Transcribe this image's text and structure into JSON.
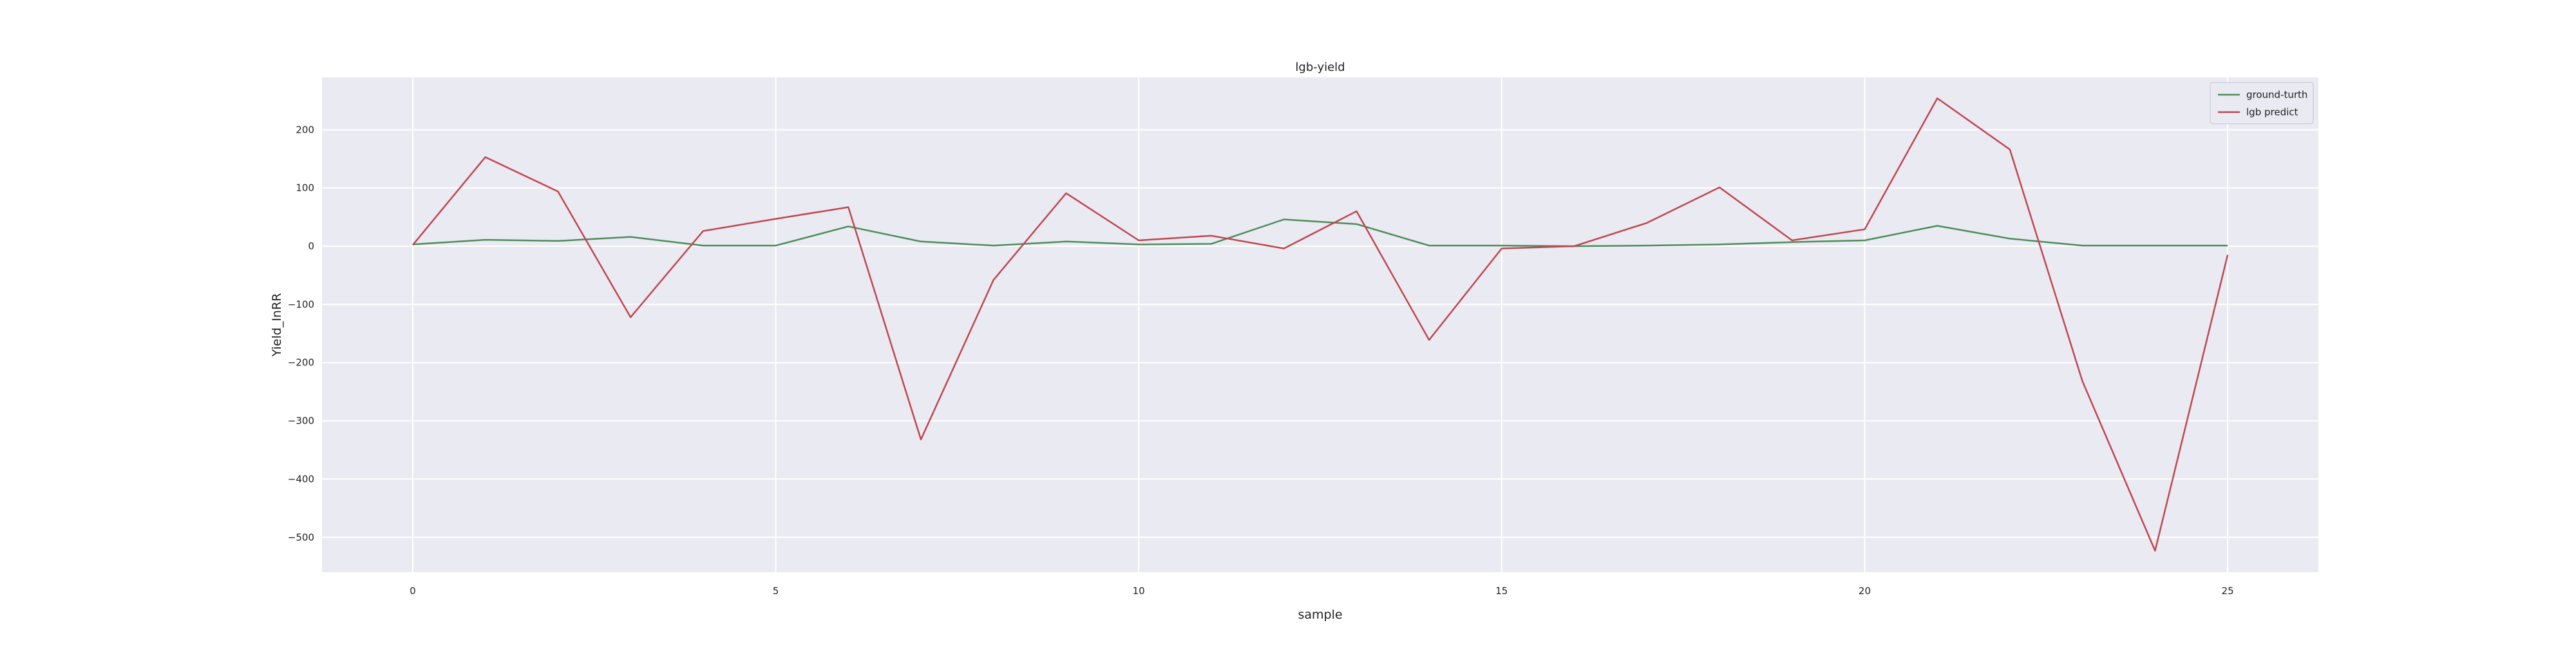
{
  "chart_data": {
    "type": "line",
    "title": "lgb-yield",
    "xlabel": "sample",
    "ylabel": "Yield_InRR",
    "xlim": [
      -1.25,
      26.25
    ],
    "ylim": [
      -560,
      290
    ],
    "x_ticks": [
      0,
      5,
      10,
      15,
      20,
      25
    ],
    "x_tick_labels": [
      "0",
      "5",
      "10",
      "15",
      "20",
      "25"
    ],
    "y_ticks": [
      200,
      100,
      0,
      -100,
      -200,
      -300,
      -400,
      -500
    ],
    "y_tick_labels": [
      "200",
      "100",
      "0",
      "−100",
      "−200",
      "−300",
      "−400",
      "−500"
    ],
    "grid": true,
    "background": "#eaeaf2",
    "legend_position": "top-right",
    "x": [
      0,
      1,
      2,
      3,
      4,
      5,
      6,
      7,
      8,
      9,
      10,
      11,
      12,
      13,
      14,
      15,
      16,
      17,
      18,
      19,
      20,
      21,
      22,
      23,
      24,
      25
    ],
    "series": [
      {
        "name": "ground-turth",
        "color": "#4c8c5a",
        "values": [
          3,
          11,
          9,
          16,
          1,
          1,
          34,
          8,
          1,
          8,
          3,
          4,
          46,
          38,
          1,
          1,
          0,
          1,
          3,
          7,
          10,
          35,
          13,
          1,
          1,
          1
        ]
      },
      {
        "name": "lgb predict",
        "color": "#c0464f",
        "values": [
          2,
          153,
          94,
          -122,
          26,
          47,
          67,
          -332,
          -58,
          91,
          10,
          18,
          -4,
          60,
          -161,
          -4,
          0,
          40,
          101,
          10,
          29,
          254,
          166,
          -232,
          -523,
          -15
        ]
      }
    ]
  }
}
